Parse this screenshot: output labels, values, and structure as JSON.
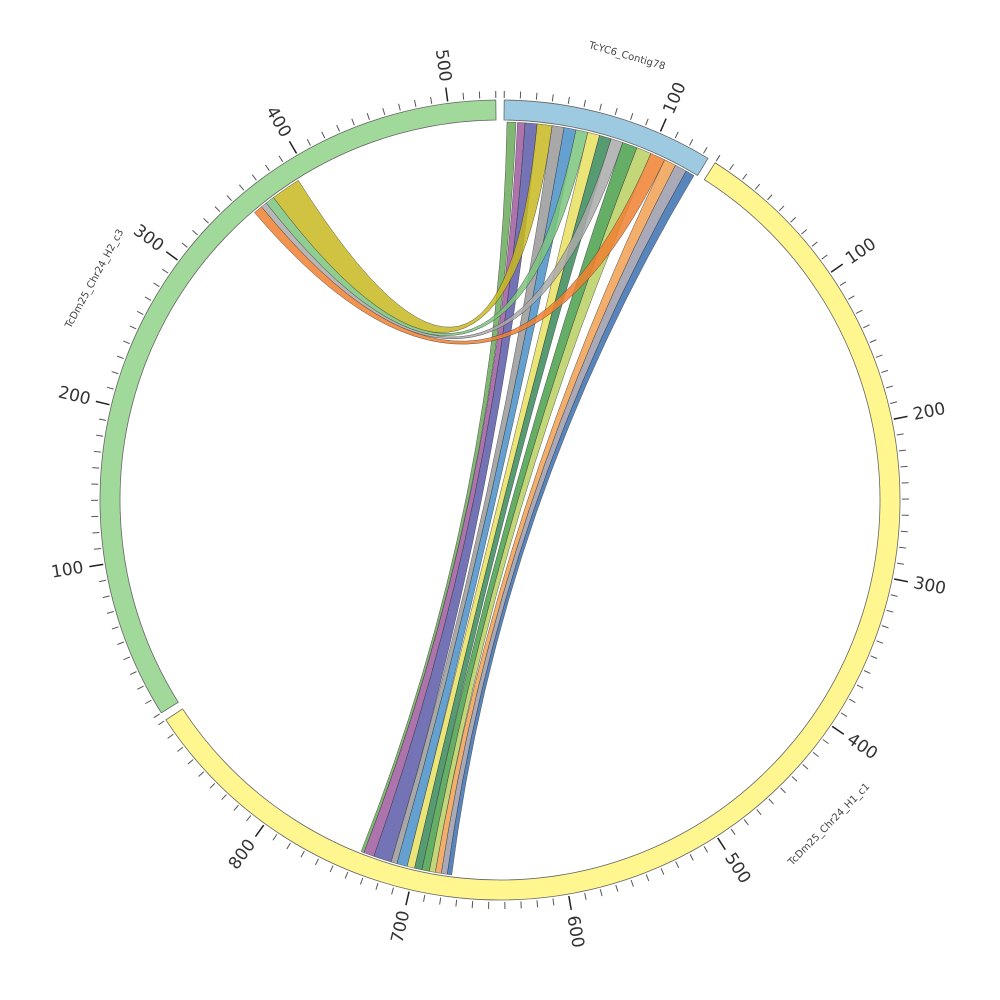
{
  "chart_data": {
    "type": "chord",
    "minor_tick_step": 10,
    "segments": [
      {
        "name": "TcYC6_Contig78",
        "length": 134,
        "color": "#9ecae1",
        "ticks": [
          100
        ]
      },
      {
        "name": "TcDm25_Chr24_H1_c1",
        "length": 890,
        "color": "#fff68f",
        "ticks": [
          100,
          200,
          300,
          400,
          500,
          600,
          700,
          800
        ]
      },
      {
        "name": "TcDm25_Chr24_H2_c3",
        "length": 530,
        "color": "#a1d99b",
        "ticks": [
          100,
          200,
          300,
          400,
          500
        ]
      }
    ],
    "links": [
      {
        "from": {
          "segment": "TcYC6_Contig78",
          "start": 2,
          "end": 8
        },
        "to": {
          "segment": "TcDm25_Chr24_H1_c1",
          "start": 735,
          "end": 737
        },
        "color": "#6aaa5a"
      },
      {
        "from": {
          "segment": "TcYC6_Contig78",
          "start": 9,
          "end": 14
        },
        "to": {
          "segment": "TcDm25_Chr24_H1_c1",
          "start": 728,
          "end": 735
        },
        "color": "#9e5a9e"
      },
      {
        "from": {
          "segment": "TcYC6_Contig78",
          "start": 14,
          "end": 22
        },
        "to": {
          "segment": "TcDm25_Chr24_H1_c1",
          "start": 716,
          "end": 728
        },
        "color": "#5a5aa8"
      },
      {
        "from": {
          "segment": "TcYC6_Contig78",
          "start": 22,
          "end": 32
        },
        "to": {
          "segment": "TcDm25_Chr24_H2_c3",
          "start": 372,
          "end": 392
        },
        "color": "#c8b820"
      },
      {
        "from": {
          "segment": "TcYC6_Contig78",
          "start": 32,
          "end": 40
        },
        "to": {
          "segment": "TcDm25_Chr24_H1_c1",
          "start": 712,
          "end": 716
        },
        "color": "#999999"
      },
      {
        "from": {
          "segment": "TcYC6_Contig78",
          "start": 40,
          "end": 48
        },
        "to": {
          "segment": "TcDm25_Chr24_H1_c1",
          "start": 705,
          "end": 712
        },
        "color": "#4a90c8"
      },
      {
        "from": {
          "segment": "TcYC6_Contig78",
          "start": 48,
          "end": 56
        },
        "to": {
          "segment": "TcDm25_Chr24_H2_c3",
          "start": 366,
          "end": 372
        },
        "color": "#7cc47c"
      },
      {
        "from": {
          "segment": "TcYC6_Contig78",
          "start": 56,
          "end": 64
        },
        "to": {
          "segment": "TcDm25_Chr24_H1_c1",
          "start": 700,
          "end": 705
        },
        "color": "#e8e060"
      },
      {
        "from": {
          "segment": "TcYC6_Contig78",
          "start": 64,
          "end": 72
        },
        "to": {
          "segment": "TcDm25_Chr24_H1_c1",
          "start": 695,
          "end": 700
        },
        "color": "#3a8a5a"
      },
      {
        "from": {
          "segment": "TcYC6_Contig78",
          "start": 72,
          "end": 80
        },
        "to": {
          "segment": "TcDm25_Chr24_H2_c3",
          "start": 362,
          "end": 366
        },
        "color": "#aaaaaa"
      },
      {
        "from": {
          "segment": "TcYC6_Contig78",
          "start": 80,
          "end": 90
        },
        "to": {
          "segment": "TcDm25_Chr24_H1_c1",
          "start": 690,
          "end": 695
        },
        "color": "#4aa04a"
      },
      {
        "from": {
          "segment": "TcYC6_Contig78",
          "start": 90,
          "end": 100
        },
        "to": {
          "segment": "TcDm25_Chr24_H1_c1",
          "start": 686,
          "end": 690
        },
        "color": "#b8d060"
      },
      {
        "from": {
          "segment": "TcYC6_Contig78",
          "start": 100,
          "end": 110
        },
        "to": {
          "segment": "TcDm25_Chr24_H2_c3",
          "start": 356,
          "end": 362
        },
        "color": "#f08030"
      },
      {
        "from": {
          "segment": "TcYC6_Contig78",
          "start": 110,
          "end": 118
        },
        "to": {
          "segment": "TcDm25_Chr24_H1_c1",
          "start": 682,
          "end": 686
        },
        "color": "#f0a050"
      },
      {
        "from": {
          "segment": "TcYC6_Contig78",
          "start": 118,
          "end": 126
        },
        "to": {
          "segment": "TcDm25_Chr24_H1_c1",
          "start": 678,
          "end": 682
        },
        "color": "#9a9aaa"
      },
      {
        "from": {
          "segment": "TcYC6_Contig78",
          "start": 126,
          "end": 132
        },
        "to": {
          "segment": "TcDm25_Chr24_H1_c1",
          "start": 675,
          "end": 678
        },
        "color": "#3a70b0"
      }
    ]
  }
}
